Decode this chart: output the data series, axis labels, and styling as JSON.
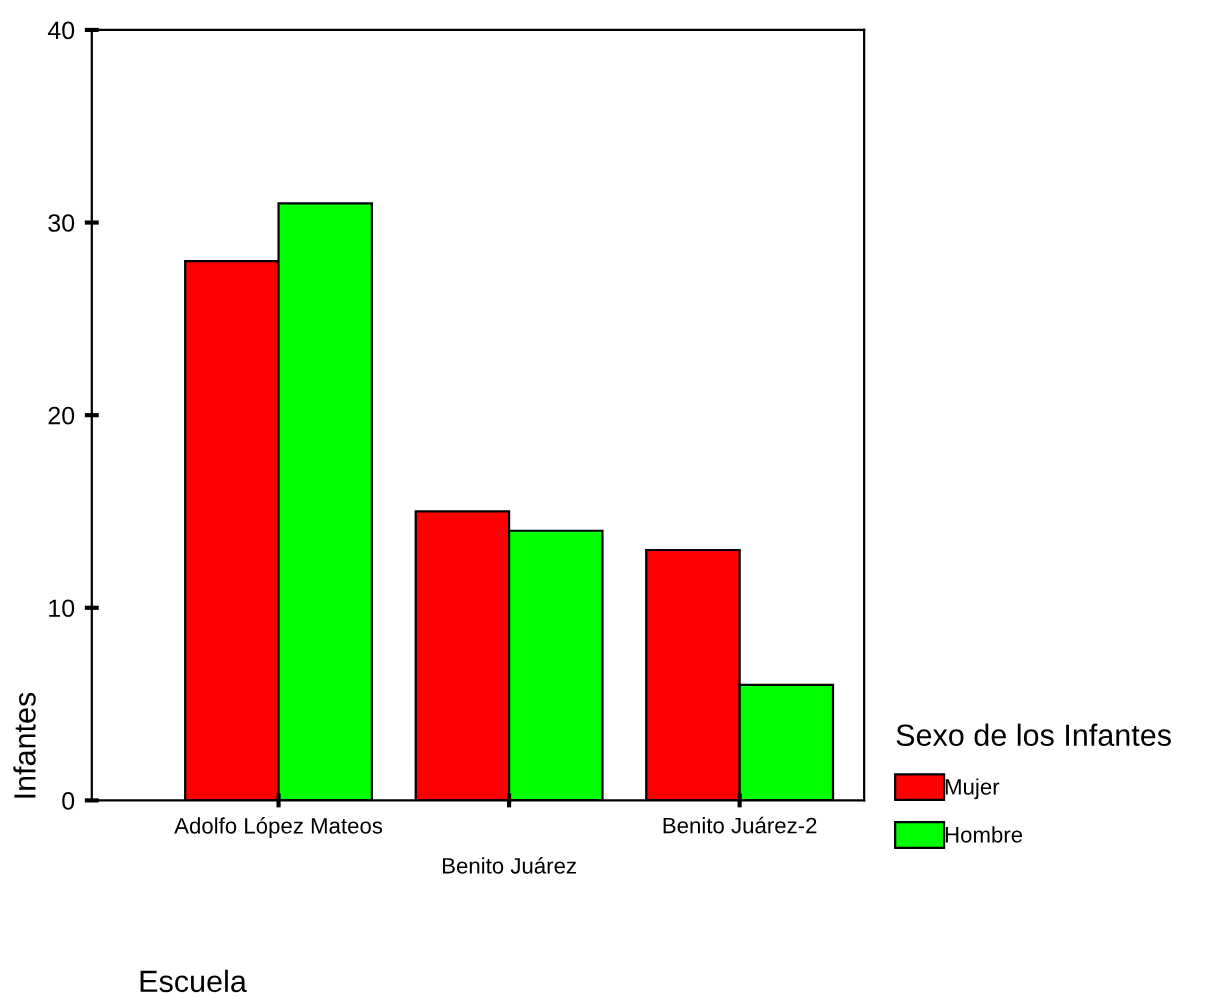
{
  "chart_data": {
    "type": "bar",
    "xlabel": "Escuela",
    "ylabel": "Infantes",
    "legend_title": "Sexo de los Infantes",
    "categories": [
      "Adolfo López Mateos",
      "Benito Juárez",
      "Benito Juárez-2"
    ],
    "series": [
      {
        "name": "Mujer",
        "color": "#ff0000",
        "values": [
          28,
          15,
          13
        ]
      },
      {
        "name": "Hombre",
        "color": "#00ff00",
        "values": [
          31,
          14,
          6
        ]
      }
    ],
    "ylim": [
      0,
      40
    ],
    "yticks": [
      0,
      10,
      20,
      30,
      40
    ],
    "grid": false,
    "legend": "right"
  }
}
